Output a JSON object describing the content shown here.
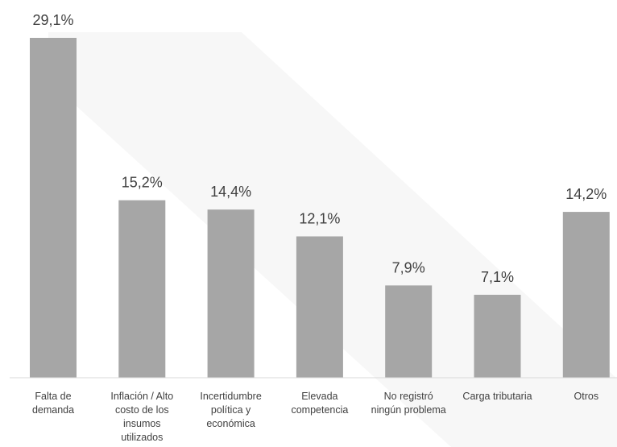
{
  "chart_data": {
    "type": "bar",
    "title": "",
    "xlabel": "",
    "ylabel": "",
    "ylim": [
      0,
      29.1
    ],
    "grid": false,
    "bar_color": "#a6a6a6",
    "label_color": "#404040",
    "categories": [
      [
        "Falta de",
        "demanda"
      ],
      [
        "Inflación / Alto",
        "costo de los",
        "insumos",
        "utilizados"
      ],
      [
        "Incertidumbre",
        "política y",
        "económica"
      ],
      [
        "Elevada",
        "competencia"
      ],
      [
        "No registró",
        "ningún problema"
      ],
      [
        "Carga tributaria"
      ],
      [
        "Otros"
      ]
    ],
    "values": [
      29.1,
      15.2,
      14.4,
      12.1,
      7.9,
      7.1,
      14.2
    ],
    "value_labels": [
      "29,1%",
      "15,2%",
      "14,4%",
      "12,1%",
      "7,9%",
      "7,1%",
      "14,2%"
    ]
  }
}
